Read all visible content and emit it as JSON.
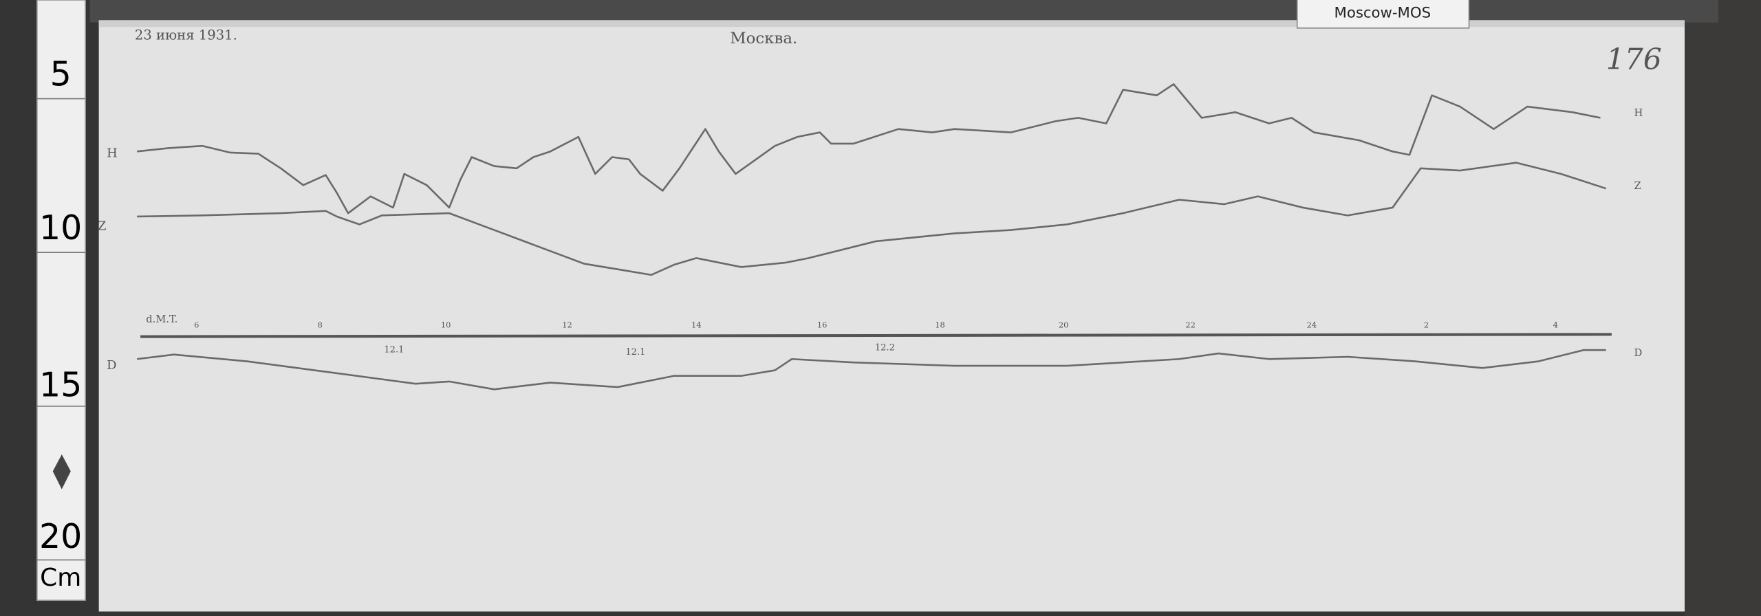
{
  "ruler": {
    "labels": [
      "5",
      "10",
      "15",
      "20"
    ],
    "unit": "Cm"
  },
  "tag": "Moscow-MOS",
  "header": {
    "date": "23 июня 1931.",
    "place": "Москва."
  },
  "sheet_number": "176",
  "traces": {
    "labels": [
      "H",
      "Z",
      "D"
    ]
  },
  "time_axis": {
    "label": "d.M.T.",
    "ticks": [
      "6",
      "8",
      "10",
      "12",
      "14",
      "16",
      "18",
      "20",
      "22",
      "24",
      "2",
      "4"
    ]
  },
  "annotations": [
    "12.1",
    "12.1",
    "12.2"
  ]
}
